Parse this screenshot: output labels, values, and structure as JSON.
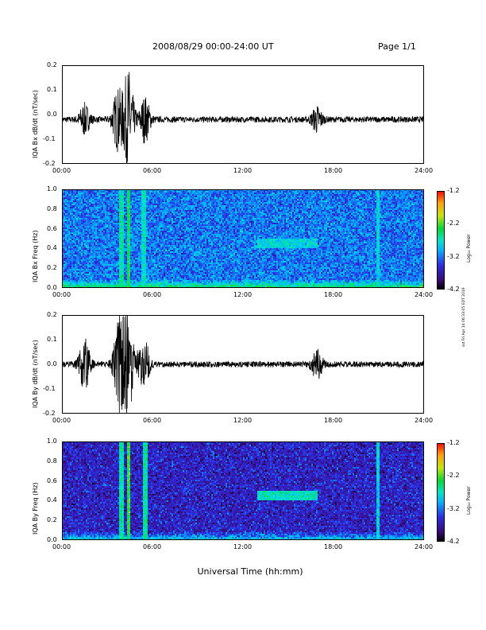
{
  "header": {
    "title": "2008/08/29  00:00-24:00 UT",
    "page": "Page 1/1"
  },
  "x_tick_labels": [
    "00:00",
    "06:00",
    "12:00",
    "18:00",
    "24:00"
  ],
  "xlabel": "Universal Time (hh:mm)",
  "side_stamp": "sst  Fri Apr 14 06:33:05 EDT 2019",
  "chart_data": [
    {
      "type": "line",
      "ylabel": "IQA Bx dB/dt (nT/sec)",
      "xlim": [
        0,
        24
      ],
      "ylim": [
        -0.2,
        0.2
      ],
      "yticks": [
        0.2,
        0.1,
        0.0,
        -0.1,
        -0.2
      ],
      "ytick_labels": [
        "0.2",
        "0.1",
        "0.0",
        "-0.1",
        "-0.2"
      ],
      "baseline": -0.02,
      "bursts": [
        {
          "t": 1.5,
          "amp": 0.06
        },
        {
          "t": 3.7,
          "amp": 0.12
        },
        {
          "t": 4.4,
          "amp": 0.2
        },
        {
          "t": 5.5,
          "amp": 0.09
        },
        {
          "t": 16.9,
          "amp": 0.05
        }
      ]
    },
    {
      "type": "heatmap",
      "ylabel": "IQA Bx Freq (Hz)",
      "xlim": [
        0,
        24
      ],
      "ylim": [
        0,
        1.0
      ],
      "yticks": [
        1.0,
        0.8,
        0.6,
        0.4,
        0.2,
        0.0
      ],
      "ytick_labels": [
        "1.0",
        "0.8",
        "0.6",
        "0.4",
        "0.2",
        "0.0"
      ],
      "colorbar": {
        "label": "Log₁₀ Power",
        "ticks": [
          "-1.2",
          "-2.2",
          "-3.2",
          "-4.2"
        ],
        "range": [
          -4.2,
          -1.2
        ]
      },
      "background_level": -3.2,
      "features": [
        {
          "t": 3.9,
          "f_max": 1.0,
          "level": -2.6
        },
        {
          "t": 4.4,
          "f_max": 1.0,
          "level": -2.4
        },
        {
          "t": 5.4,
          "f_max": 1.0,
          "level": -2.7
        },
        {
          "t_start": 13.0,
          "t_end": 17.0,
          "f": 0.45,
          "level": -2.8
        },
        {
          "t": 21.0,
          "f_max": 1.0,
          "level": -2.8
        }
      ]
    },
    {
      "type": "line",
      "ylabel": "IQA By dB/dt (nT/sec)",
      "xlim": [
        0,
        24
      ],
      "ylim": [
        -0.2,
        0.2
      ],
      "yticks": [
        0.2,
        0.1,
        0.0,
        -0.1,
        -0.2
      ],
      "ytick_labels": [
        "0.2",
        "0.1",
        "0.0",
        "-0.1",
        "-0.2"
      ],
      "baseline": 0.0,
      "bursts": [
        {
          "t": 1.5,
          "amp": 0.1
        },
        {
          "t": 3.8,
          "amp": 0.2
        },
        {
          "t": 4.4,
          "amp": 0.2
        },
        {
          "t": 5.4,
          "amp": 0.13
        },
        {
          "t": 16.9,
          "amp": 0.06
        }
      ]
    },
    {
      "type": "heatmap",
      "ylabel": "IQA By Freq (Hz)",
      "xlim": [
        0,
        24
      ],
      "ylim": [
        0,
        1.0
      ],
      "yticks": [
        1.0,
        0.8,
        0.6,
        0.4,
        0.2,
        0.0
      ],
      "ytick_labels": [
        "1.0",
        "0.8",
        "0.6",
        "0.4",
        "0.2",
        "0.0"
      ],
      "colorbar": {
        "label": "Log₁₀ Power",
        "ticks": [
          "-1.2",
          "-2.2",
          "-3.2",
          "-4.2"
        ],
        "range": [
          -4.2,
          -1.2
        ]
      },
      "background_level": -3.6,
      "features": [
        {
          "t": 3.9,
          "f_max": 1.0,
          "level": -2.6
        },
        {
          "t": 4.4,
          "f_max": 1.0,
          "level": -2.3
        },
        {
          "t": 5.5,
          "f_max": 1.0,
          "level": -2.6
        },
        {
          "t_start": 13.0,
          "t_end": 17.0,
          "f": 0.45,
          "level": -2.7
        },
        {
          "t": 21.0,
          "f_max": 1.0,
          "level": -2.8
        }
      ]
    }
  ]
}
